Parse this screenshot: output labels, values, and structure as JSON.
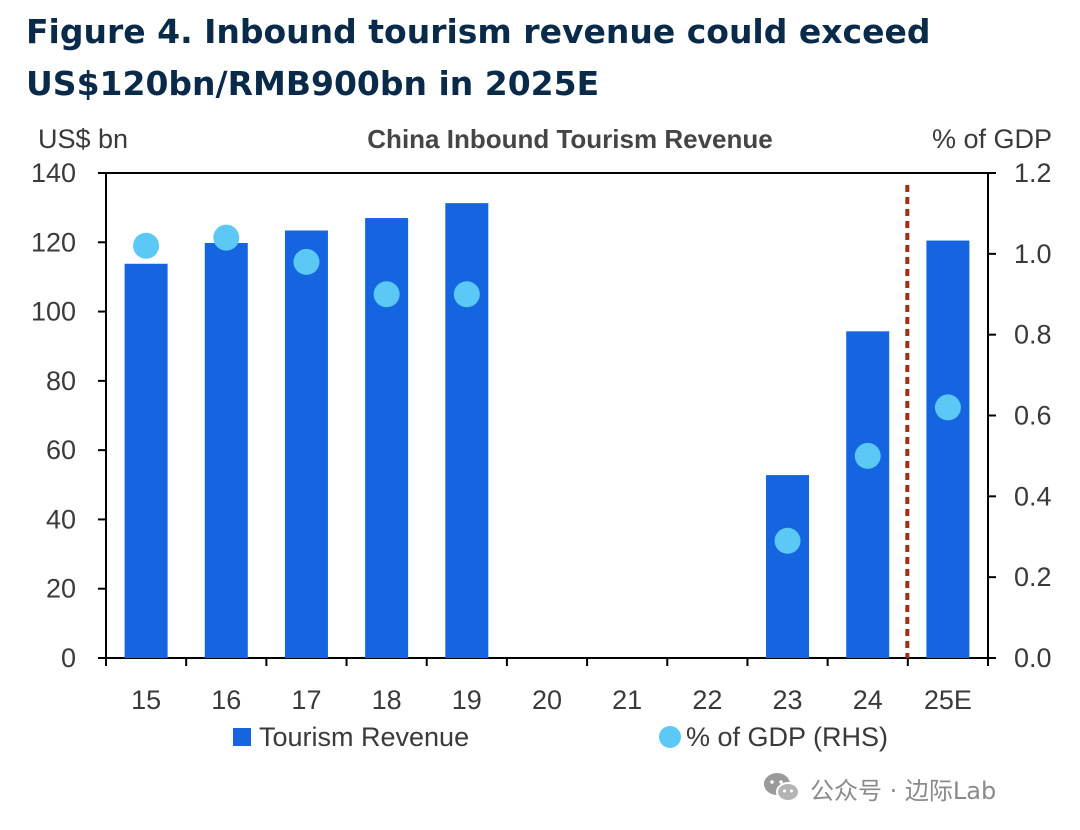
{
  "figure": {
    "title_line1": "Figure 4. Inbound tourism revenue could exceed",
    "title_line2": "US$120bn/RMB900bn in 2025E"
  },
  "watermark": {
    "text": "公众号 · 边际Lab",
    "icon": "wechat-icon"
  },
  "chart_data": {
    "type": "bar",
    "title": "China Inbound Tourism Revenue",
    "categories": [
      "15",
      "16",
      "17",
      "18",
      "19",
      "20",
      "21",
      "22",
      "23",
      "24",
      "25E"
    ],
    "ylabel": "US$ bn",
    "y2label": "% of GDP",
    "ylim": [
      0,
      140
    ],
    "y2lim": [
      0,
      1.2
    ],
    "yticks": [
      "0",
      "20",
      "40",
      "60",
      "80",
      "100",
      "120",
      "140"
    ],
    "y2ticks": [
      "0.0",
      "0.2",
      "0.4",
      "0.6",
      "0.8",
      "1.0",
      "1.2"
    ],
    "grid": false,
    "legend_position": "bottom",
    "series": [
      {
        "name": "Tourism Revenue",
        "type": "bar",
        "axis": "left",
        "color": "#1565e0",
        "values": [
          113.8,
          119.8,
          123.4,
          127.0,
          131.3,
          null,
          null,
          null,
          52.8,
          94.3,
          120.5
        ]
      },
      {
        "name": "% of GDP (RHS)",
        "type": "scatter",
        "axis": "right",
        "color": "#5bc8f5",
        "values": [
          1.02,
          1.04,
          0.98,
          0.9,
          0.9,
          null,
          null,
          null,
          0.29,
          0.5,
          0.62
        ]
      }
    ],
    "annotations": [
      {
        "type": "vertical-dashed-line",
        "between": [
          "24",
          "25E"
        ],
        "color": "#a52a1a"
      }
    ]
  }
}
